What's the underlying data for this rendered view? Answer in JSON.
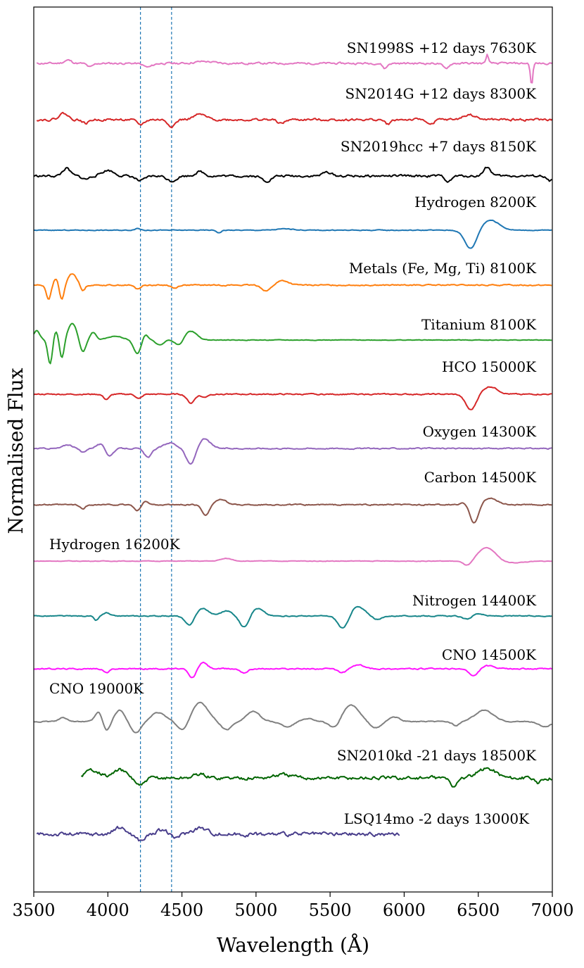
{
  "chart_data": {
    "type": "line",
    "title": "",
    "xlabel": "Wavelength (Å)",
    "ylabel": "Normalised Flux",
    "xlim": [
      3500,
      7000
    ],
    "xticks": [
      "3500",
      "4000",
      "4500",
      "5000",
      "5500",
      "6000",
      "6500",
      "7000"
    ],
    "yticks": false,
    "grid": false,
    "reference_lines_angstrom": [
      4220,
      4430
    ],
    "reference_line_color": "#1f77b4",
    "series": [
      {
        "name": "SN1998S +12 days 7630K",
        "color": "#e377c2",
        "x_range": [
          3520,
          7000
        ],
        "offset": 0.2,
        "seed": 11,
        "noise": 0.25,
        "features": [
          [
            3730,
            0.5,
            25
          ],
          [
            3880,
            -0.6,
            20
          ],
          [
            4270,
            -0.6,
            30
          ],
          [
            4650,
            0.3,
            60
          ],
          [
            5870,
            -0.8,
            15
          ],
          [
            6280,
            -0.8,
            20
          ],
          [
            6560,
            1.4,
            8
          ],
          [
            6860,
            -3.5,
            8
          ]
        ]
      },
      {
        "name": "SN2014G +12 days 8300K",
        "color": "#d62728",
        "x_range": [
          3520,
          7000
        ],
        "offset": 1.0,
        "seed": 22,
        "noise": 0.3,
        "features": [
          [
            3700,
            1.0,
            30
          ],
          [
            3850,
            -0.6,
            20
          ],
          [
            4220,
            -0.8,
            25
          ],
          [
            4430,
            -1.0,
            25
          ],
          [
            4620,
            0.8,
            40
          ],
          [
            5170,
            -0.6,
            25
          ],
          [
            5890,
            -0.7,
            20
          ],
          [
            6180,
            -0.8,
            20
          ],
          [
            6440,
            0.8,
            40
          ]
        ]
      },
      {
        "name": "SN2019hcc +7 days 8150K",
        "color": "#000000",
        "x_range": [
          3500,
          7000
        ],
        "offset": 2.0,
        "seed": 33,
        "noise": 0.3,
        "features": [
          [
            3720,
            1.2,
            25
          ],
          [
            3850,
            -0.5,
            25
          ],
          [
            4000,
            0.9,
            40
          ],
          [
            4220,
            -0.8,
            30
          ],
          [
            4430,
            -0.8,
            30
          ],
          [
            4620,
            0.7,
            30
          ],
          [
            5070,
            -0.8,
            30
          ],
          [
            5480,
            0.6,
            30
          ],
          [
            6300,
            -0.9,
            20
          ],
          [
            6560,
            1.4,
            25
          ],
          [
            6980,
            -0.8,
            20
          ]
        ]
      },
      {
        "name": "Hydrogen 8200K",
        "color": "#1f77b4",
        "x_range": [
          3500,
          7000
        ],
        "offset": 3.0,
        "seed": 44,
        "noise": 0.1,
        "features": [
          [
            4200,
            0.3,
            20
          ],
          [
            4750,
            -0.4,
            15
          ],
          [
            5200,
            0.2,
            60
          ],
          [
            6450,
            -3.0,
            40
          ],
          [
            6580,
            1.6,
            60
          ]
        ]
      },
      {
        "name": "Metals (Fe, Mg, Ti) 8100K",
        "color": "#ff7f0e",
        "x_range": [
          3500,
          7000
        ],
        "offset": 4.0,
        "seed": 55,
        "noise": 0.15,
        "features": [
          [
            3600,
            -2.2,
            15
          ],
          [
            3650,
            1.0,
            15
          ],
          [
            3690,
            -2.4,
            15
          ],
          [
            3760,
            1.8,
            30
          ],
          [
            3830,
            -1.0,
            15
          ],
          [
            4200,
            -0.6,
            20
          ],
          [
            4450,
            -0.5,
            20
          ],
          [
            5070,
            -0.9,
            30
          ],
          [
            5180,
            0.7,
            40
          ]
        ]
      },
      {
        "name": "Titanium 8100K",
        "color": "#2ca02c",
        "x_range": [
          3500,
          7000
        ],
        "offset": 5.0,
        "seed": 66,
        "noise": 0.08,
        "features": [
          [
            3520,
            1.5,
            20
          ],
          [
            3610,
            -3.8,
            15
          ],
          [
            3650,
            1.4,
            15
          ],
          [
            3690,
            -3.0,
            15
          ],
          [
            3760,
            2.6,
            30
          ],
          [
            3830,
            -2.0,
            20
          ],
          [
            3900,
            1.2,
            20
          ],
          [
            4050,
            0.6,
            50
          ],
          [
            4200,
            -2.2,
            25
          ],
          [
            4250,
            1.0,
            20
          ],
          [
            4350,
            -0.8,
            25
          ],
          [
            4480,
            -0.9,
            25
          ],
          [
            4560,
            1.4,
            40
          ]
        ]
      },
      {
        "name": "HCO 15000K",
        "color": "#d62728",
        "x_range": [
          3500,
          7000
        ],
        "offset": 6.0,
        "seed": 77,
        "noise": 0.15,
        "features": [
          [
            3990,
            -0.8,
            20
          ],
          [
            4210,
            -0.7,
            20
          ],
          [
            4560,
            -1.4,
            25
          ],
          [
            4650,
            -0.5,
            20
          ],
          [
            6450,
            -2.5,
            35
          ],
          [
            6580,
            1.2,
            50
          ]
        ]
      },
      {
        "name": "Oxygen 14300K",
        "color": "#9467bd",
        "x_range": [
          3500,
          7000
        ],
        "offset": 7.0,
        "seed": 88,
        "noise": 0.15,
        "features": [
          [
            3730,
            0.6,
            30
          ],
          [
            3830,
            -0.6,
            20
          ],
          [
            3950,
            0.7,
            30
          ],
          [
            4010,
            -1.2,
            25
          ],
          [
            4270,
            -1.4,
            25
          ],
          [
            4420,
            0.9,
            40
          ],
          [
            4560,
            -2.6,
            30
          ],
          [
            4650,
            1.5,
            40
          ]
        ]
      },
      {
        "name": "Carbon 14500K",
        "color": "#8c564b",
        "x_range": [
          3500,
          7000
        ],
        "offset": 8.0,
        "seed": 99,
        "noise": 0.15,
        "features": [
          [
            3830,
            -0.6,
            20
          ],
          [
            4200,
            -1.0,
            20
          ],
          [
            4250,
            0.6,
            20
          ],
          [
            4660,
            -1.6,
            25
          ],
          [
            4760,
            0.8,
            40
          ],
          [
            6420,
            0.5,
            30
          ],
          [
            6470,
            -3.0,
            30
          ],
          [
            6580,
            1.0,
            50
          ]
        ]
      },
      {
        "name": "Hydrogen 16200K",
        "color": "#e377c2",
        "x_range": [
          3500,
          7000
        ],
        "offset": 9.0,
        "seed": 110,
        "noise": 0.08,
        "features": [
          [
            4800,
            0.4,
            40
          ],
          [
            6430,
            -0.8,
            30
          ],
          [
            6560,
            2.2,
            60
          ],
          [
            6700,
            -0.3,
            100
          ]
        ]
      },
      {
        "name": "Nitrogen 14400K",
        "color": "#17868a",
        "x_range": [
          3500,
          7000
        ],
        "offset": 10.0,
        "seed": 121,
        "noise": 0.12,
        "features": [
          [
            3920,
            -0.7,
            15
          ],
          [
            3990,
            0.5,
            20
          ],
          [
            4550,
            -1.5,
            30
          ],
          [
            4640,
            1.2,
            40
          ],
          [
            4800,
            0.8,
            40
          ],
          [
            4920,
            -1.8,
            30
          ],
          [
            5010,
            1.2,
            40
          ],
          [
            5590,
            -2.2,
            35
          ],
          [
            5680,
            1.5,
            50
          ],
          [
            5820,
            -0.6,
            30
          ],
          [
            6420,
            -0.5,
            30
          ],
          [
            6500,
            0.4,
            30
          ]
        ]
      },
      {
        "name": "CNO 14500K",
        "color": "#ff14ff",
        "x_range": [
          3500,
          7000
        ],
        "offset": 11.0,
        "seed": 132,
        "noise": 0.15,
        "features": [
          [
            3990,
            -0.6,
            20
          ],
          [
            4570,
            -1.5,
            25
          ],
          [
            4640,
            1.0,
            30
          ],
          [
            4920,
            -0.6,
            25
          ],
          [
            5580,
            -0.6,
            30
          ],
          [
            5690,
            0.6,
            40
          ],
          [
            6470,
            -1.2,
            30
          ],
          [
            6560,
            0.5,
            40
          ]
        ]
      },
      {
        "name": "CNO 19000K",
        "color": "#808080",
        "x_range": [
          3500,
          7000
        ],
        "offset": 12.0,
        "seed": 143,
        "noise": 0.12,
        "features": [
          [
            3700,
            0.6,
            30
          ],
          [
            3940,
            1.6,
            25
          ],
          [
            3990,
            -1.6,
            25
          ],
          [
            4080,
            1.8,
            35
          ],
          [
            4190,
            -1.8,
            35
          ],
          [
            4340,
            1.4,
            50
          ],
          [
            4510,
            -1.6,
            35
          ],
          [
            4620,
            3.0,
            55
          ],
          [
            4800,
            -1.3,
            35
          ],
          [
            4980,
            1.6,
            45
          ],
          [
            5210,
            -0.8,
            40
          ],
          [
            5350,
            0.5,
            40
          ],
          [
            5530,
            -1.2,
            35
          ],
          [
            5640,
            2.6,
            55
          ],
          [
            5810,
            -1.0,
            40
          ],
          [
            5930,
            0.7,
            40
          ],
          [
            6350,
            -0.6,
            25
          ],
          [
            6540,
            1.8,
            60
          ],
          [
            6950,
            -0.8,
            40
          ]
        ]
      },
      {
        "name": "SN2010kd -21 days 18500K",
        "color": "#006400",
        "x_range": [
          3820,
          7000
        ],
        "offset": 13.0,
        "seed": 154,
        "noise": 0.45,
        "features": [
          [
            3900,
            1.3,
            50
          ],
          [
            4080,
            1.3,
            40
          ],
          [
            4220,
            -1.2,
            30
          ],
          [
            4620,
            0.6,
            40
          ],
          [
            5180,
            0.5,
            60
          ],
          [
            6330,
            -1.5,
            20
          ],
          [
            6560,
            1.5,
            60
          ],
          [
            6900,
            -1.0,
            20
          ]
        ]
      },
      {
        "name": "LSQ14mo -2 days 13000K",
        "color": "#483d8b",
        "x_range": [
          3520,
          5970
        ],
        "offset": 14.0,
        "seed": 165,
        "noise": 0.5,
        "features": [
          [
            4080,
            1.0,
            40
          ],
          [
            4220,
            -1.0,
            30
          ],
          [
            4380,
            0.8,
            40
          ],
          [
            4440,
            -0.8,
            30
          ],
          [
            4620,
            1.0,
            50
          ]
        ]
      }
    ]
  }
}
